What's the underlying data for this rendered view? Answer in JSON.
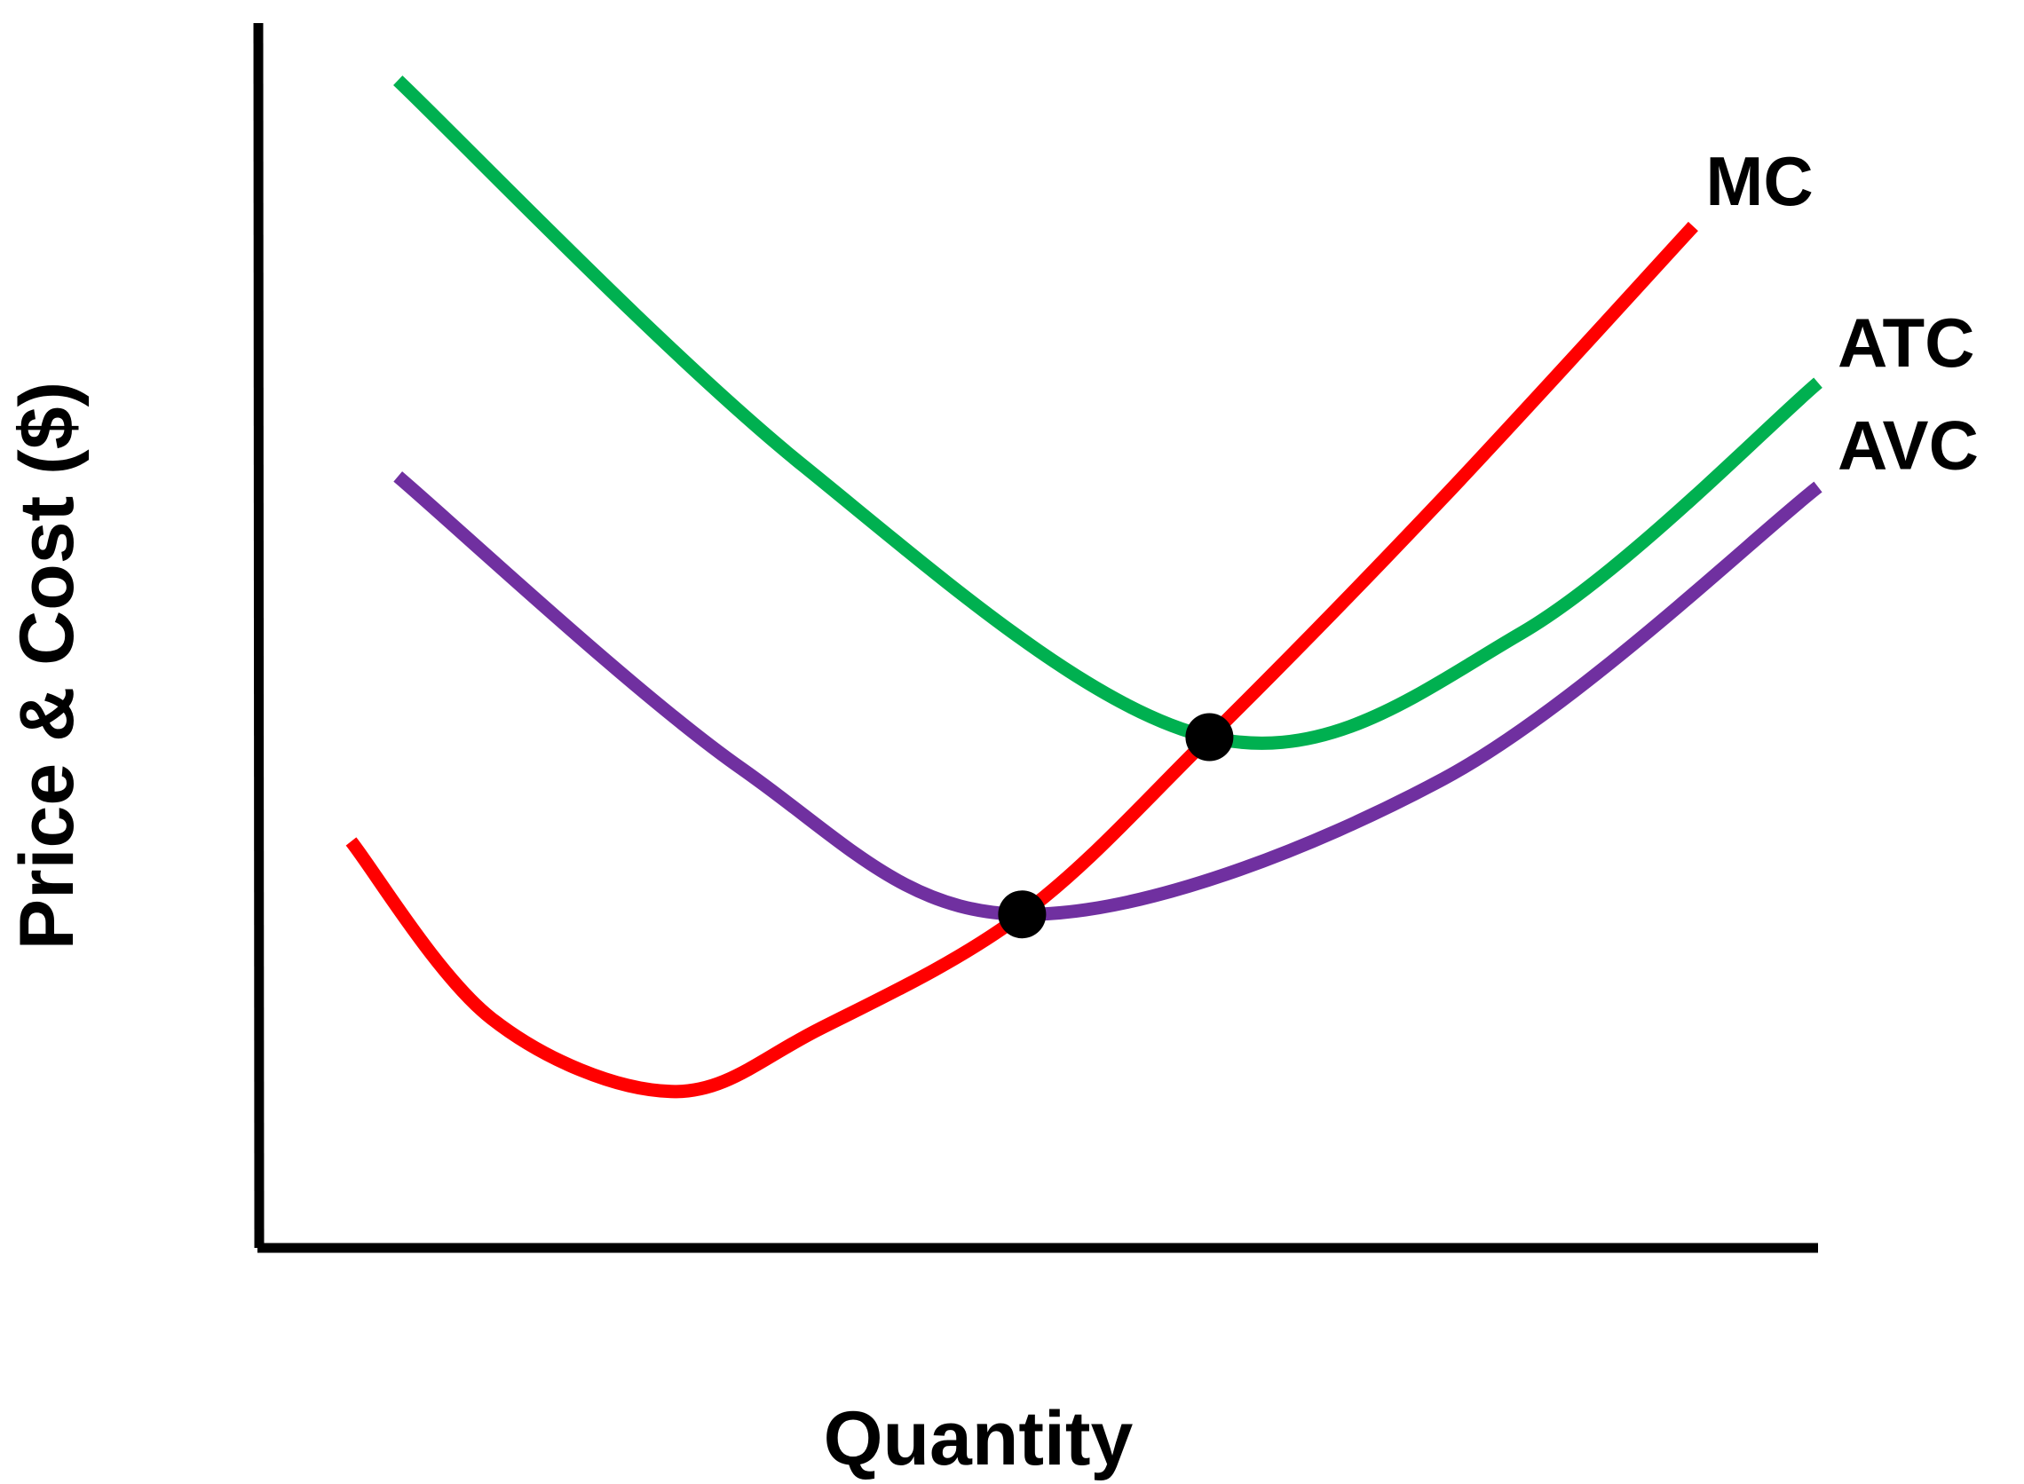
{
  "chart_data": {
    "type": "line",
    "xlabel": "Quantity",
    "ylabel": "Price & Cost ($)",
    "grid": false,
    "legend": "inline-right",
    "series": [
      {
        "name": "MC",
        "color": "#ff0000",
        "points": [
          {
            "x": 0.06,
            "y": 0.39
          },
          {
            "x": 0.15,
            "y": 0.22
          },
          {
            "x": 0.265,
            "y": 0.15
          },
          {
            "x": 0.36,
            "y": 0.21
          },
          {
            "x": 0.49,
            "y": 0.32
          },
          {
            "x": 0.61,
            "y": 0.49
          },
          {
            "x": 0.76,
            "y": 0.72
          },
          {
            "x": 0.92,
            "y": 0.98
          }
        ]
      },
      {
        "name": "ATC",
        "color": "#00b050",
        "points": [
          {
            "x": 0.09,
            "y": 1.12
          },
          {
            "x": 0.35,
            "y": 0.75
          },
          {
            "x": 0.61,
            "y": 0.49
          },
          {
            "x": 0.81,
            "y": 0.59
          },
          {
            "x": 1.0,
            "y": 0.83
          }
        ]
      },
      {
        "name": "AVC",
        "color": "#7030a0",
        "points": [
          {
            "x": 0.09,
            "y": 0.74
          },
          {
            "x": 0.31,
            "y": 0.46
          },
          {
            "x": 0.49,
            "y": 0.32
          },
          {
            "x": 0.76,
            "y": 0.45
          },
          {
            "x": 1.0,
            "y": 0.73
          }
        ]
      }
    ],
    "highlight_points": [
      {
        "x": 0.61,
        "y": 0.49,
        "color": "#000000"
      },
      {
        "x": 0.49,
        "y": 0.32,
        "color": "#000000"
      }
    ],
    "axis_color": "#000000"
  }
}
